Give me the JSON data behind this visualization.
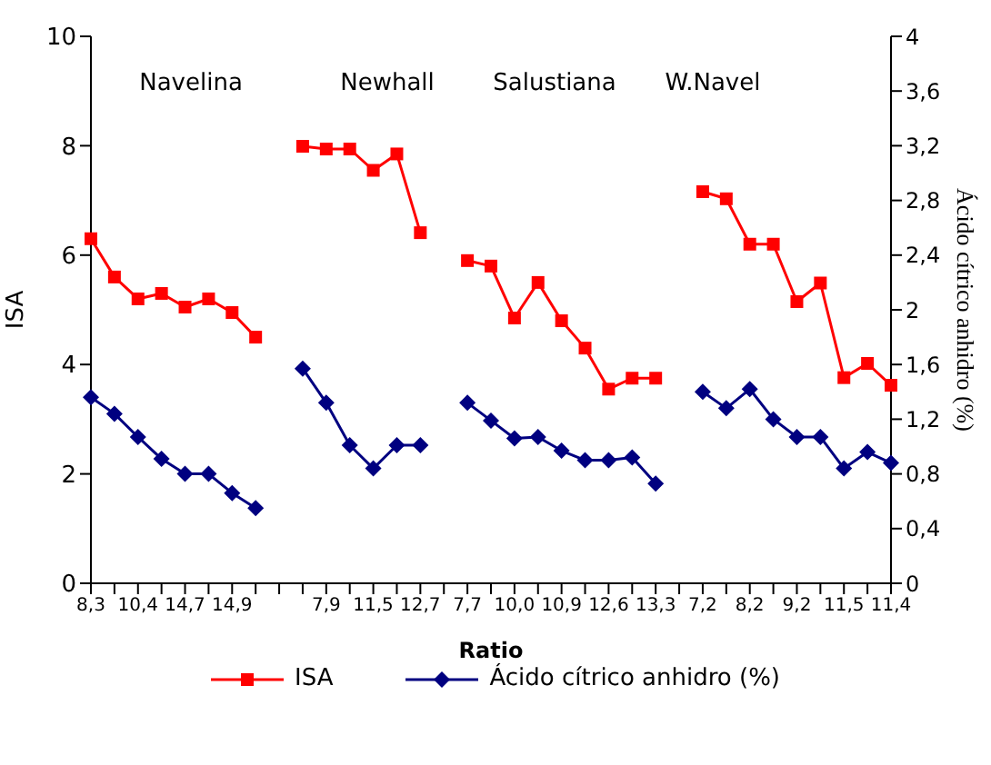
{
  "chart_data": {
    "type": "line",
    "xlabel": "Ratio",
    "ylabel": "ISA",
    "y2label": "Ácido cítrico anhidro (%)",
    "annotations": [
      "Navelina",
      "Newhall",
      "Salustiana",
      "W.Navel"
    ],
    "categories": [
      "8,3",
      null,
      "10,4",
      null,
      "14,7",
      null,
      "14,9",
      null,
      null,
      null,
      "7,9",
      null,
      "11,5",
      null,
      "12,7",
      null,
      "7,7",
      null,
      "10,0",
      null,
      "10,9",
      null,
      "12,6",
      null,
      "13,3",
      null,
      "7,2",
      null,
      "8,2",
      null,
      "9,2",
      null,
      "11,5",
      null,
      "11,4"
    ],
    "series": [
      {
        "name": "ISA",
        "color": "#ff0000",
        "marker": "square",
        "values": [
          6.3,
          5.6,
          5.2,
          5.3,
          5.05,
          5.2,
          4.95,
          4.5,
          null,
          7.99,
          7.94,
          7.94,
          7.55,
          7.85,
          6.41,
          null,
          5.9,
          5.8,
          4.85,
          5.5,
          4.8,
          4.3,
          3.55,
          3.75,
          3.75,
          null,
          7.16,
          7.03,
          6.2,
          6.2,
          5.15,
          5.49,
          3.76,
          4.02,
          3.62
        ]
      },
      {
        "name": "Ácido cítrico anhidro (%)",
        "color": "#000080",
        "marker": "diamond",
        "axis": "y2",
        "values": [
          1.36,
          1.24,
          1.07,
          0.91,
          0.8,
          0.8,
          0.66,
          0.55,
          null,
          1.57,
          1.32,
          1.01,
          0.84,
          1.01,
          1.01,
          null,
          1.32,
          1.19,
          1.06,
          1.07,
          0.97,
          0.9,
          0.9,
          0.92,
          0.73,
          null,
          1.4,
          1.28,
          1.42,
          1.2,
          1.07,
          1.07,
          0.84,
          0.96,
          0.88
        ]
      }
    ],
    "ylim": [
      0,
      10
    ],
    "yticks": [
      0,
      2,
      4,
      6,
      8,
      10
    ],
    "y2lim": [
      0,
      4
    ],
    "y2ticks": [
      0,
      {
        "value": 0.4,
        "label": "0,4"
      },
      {
        "value": 0.8,
        "label": "0,8"
      },
      {
        "value": 1.2,
        "label": "1,2"
      },
      {
        "value": 1.6,
        "label": "1,6"
      },
      2,
      {
        "value": 2.4,
        "label": "2,4"
      },
      {
        "value": 2.8,
        "label": "2,8"
      },
      {
        "value": 3.2,
        "label": "3,2"
      },
      {
        "value": 3.6,
        "label": "3,6"
      },
      4
    ],
    "legend": "bottom",
    "grid": false
  }
}
